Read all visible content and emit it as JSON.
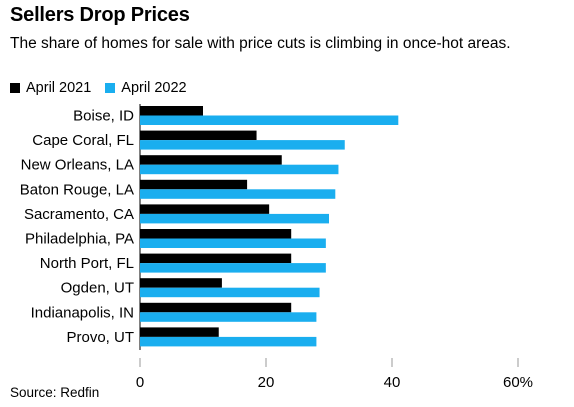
{
  "title": "Sellers Drop Prices",
  "subtitle": "The share of homes for sale with price cuts is climbing in once-hot areas.",
  "source": "Source: Redfin",
  "colors": {
    "april_2021": "#000000",
    "april_2022": "#1aaeef",
    "tick": "#999999"
  },
  "chart_data": {
    "type": "bar",
    "orientation": "horizontal",
    "categories": [
      "Boise, ID",
      "Cape Coral, FL",
      "New Orleans, LA",
      "Baton Rouge, LA",
      "Sacramento, CA",
      "Philadelphia, PA",
      "North Port, FL",
      "Ogden, UT",
      "Indianapolis, IN",
      "Provo, UT"
    ],
    "series": [
      {
        "name": "April 2021",
        "color": "#000000",
        "values": [
          10,
          18.5,
          22.5,
          17,
          20.5,
          24,
          24,
          13,
          24,
          12.5
        ]
      },
      {
        "name": "April 2022",
        "color": "#1aaeef",
        "values": [
          41,
          32.5,
          31.5,
          31,
          30,
          29.5,
          29.5,
          28.5,
          28,
          28
        ]
      }
    ],
    "xlim": [
      0,
      60
    ],
    "xticks": [
      0,
      20,
      40,
      60
    ],
    "xtick_labels": [
      "0",
      "20",
      "40",
      "60%"
    ],
    "legend_position": "top-left",
    "grid": false
  }
}
